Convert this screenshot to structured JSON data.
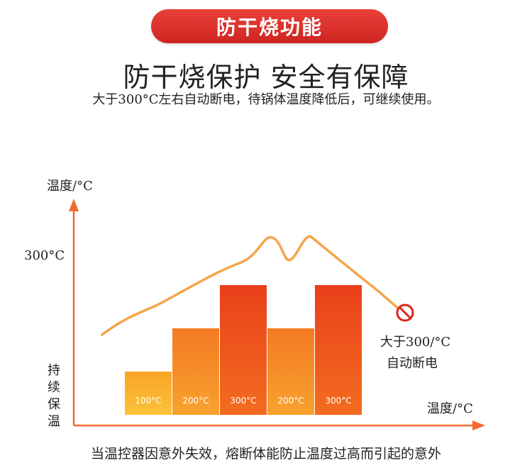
{
  "header": {
    "badge": "防干烧功能",
    "headline": "防干烧保护 安全有保障",
    "subline": "大于300°C左右自动断电，待锅体温度降低后，可继续使用。"
  },
  "footer": {
    "caption": "当温控器因意外失效，熔断体能防止温度过高而引起的意外"
  },
  "colors": {
    "accent": "#e8403a",
    "axis": "#f26a2e",
    "curve": "#f5a54a",
    "bar_low": "#fbb028",
    "bar_mid": "#f7862a",
    "bar_high": "#ea4a1c"
  },
  "chart_data": {
    "type": "bar",
    "ylabel": "温度/°C",
    "xlabel": "温度/°C",
    "y_marker": "300°C",
    "y_bottom_label": [
      "持",
      "续",
      "保",
      "温"
    ],
    "categories": [
      "100°C",
      "200°C",
      "300°C",
      "200°C",
      "300°C"
    ],
    "values": [
      100,
      200,
      300,
      200,
      300
    ],
    "ylim": [
      0,
      400
    ],
    "curve": {
      "description_label": [
        "大于300/°C",
        "自动断电"
      ],
      "cutoff_icon": "prohibited-icon"
    }
  }
}
